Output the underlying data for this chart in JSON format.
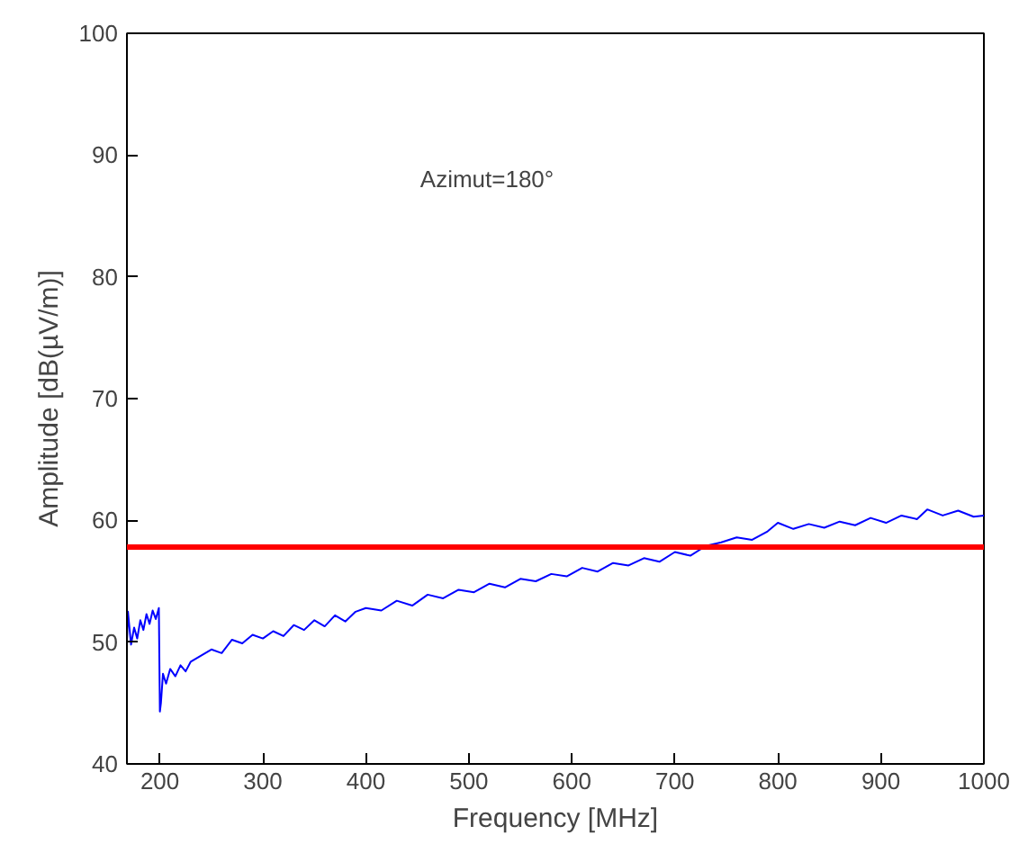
{
  "chart_data": {
    "type": "line",
    "xlabel": "Frequency [MHz]",
    "ylabel": "Amplitude [dB(µV/m)]",
    "xlim": [
      168,
      1000
    ],
    "ylim": [
      40,
      100
    ],
    "xticks": [
      200,
      300,
      400,
      500,
      600,
      700,
      800,
      900,
      1000
    ],
    "yticks": [
      40,
      50,
      60,
      70,
      80,
      90,
      100
    ],
    "grid": false,
    "series": [
      {
        "color": "#0000ff",
        "x": [
          168,
          169,
          172,
          175,
          178,
          181,
          184,
          187,
          190,
          193,
          196,
          199,
          200,
          201,
          203,
          206,
          210,
          215,
          220,
          225,
          230,
          240,
          250,
          260,
          270,
          280,
          290,
          300,
          310,
          320,
          330,
          340,
          350,
          360,
          370,
          380,
          390,
          400,
          415,
          430,
          445,
          460,
          475,
          490,
          505,
          520,
          535,
          550,
          565,
          580,
          595,
          610,
          625,
          640,
          655,
          670,
          685,
          700,
          715,
          730,
          745,
          760,
          775,
          790,
          800,
          815,
          830,
          845,
          860,
          875,
          890,
          905,
          920,
          935,
          945,
          960,
          975,
          990,
          1000
        ],
        "values": [
          50.0,
          52.5,
          49.8,
          51.2,
          50.3,
          51.8,
          51.0,
          52.3,
          51.5,
          52.6,
          51.9,
          52.8,
          44.3,
          45.0,
          47.4,
          46.6,
          47.8,
          47.2,
          48.1,
          47.6,
          48.4,
          48.9,
          49.4,
          49.1,
          50.2,
          49.9,
          50.6,
          50.3,
          50.9,
          50.5,
          51.4,
          51.0,
          51.8,
          51.3,
          52.2,
          51.7,
          52.5,
          52.8,
          52.6,
          53.4,
          53.0,
          53.9,
          53.6,
          54.3,
          54.1,
          54.8,
          54.5,
          55.2,
          55.0,
          55.6,
          55.4,
          56.1,
          55.8,
          56.5,
          56.3,
          56.9,
          56.6,
          57.4,
          57.1,
          57.9,
          58.2,
          58.6,
          58.4,
          59.1,
          59.8,
          59.3,
          59.7,
          59.4,
          59.9,
          59.6,
          60.2,
          59.8,
          60.4,
          60.1,
          60.9,
          60.4,
          60.8,
          60.3,
          60.4
        ]
      }
    ],
    "ref_lines": [
      {
        "axis": "y",
        "value": 57.8,
        "color": "#ff0000"
      }
    ],
    "annotations": [
      "Azimut=180°"
    ]
  }
}
